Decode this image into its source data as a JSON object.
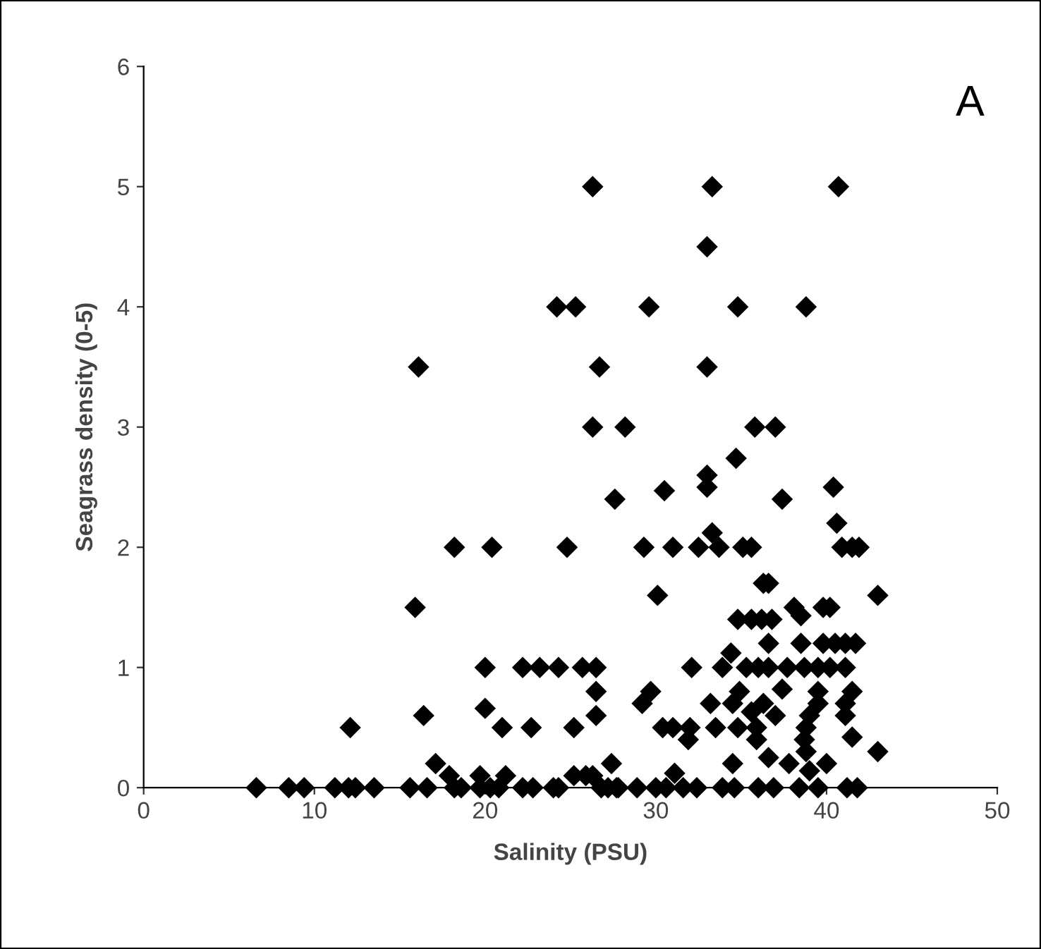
{
  "chart_data": {
    "type": "scatter",
    "xlabel": "Salinity (PSU)",
    "ylabel": "Seagrass density (0-5)",
    "annotations": [
      "A"
    ],
    "xlim": [
      0,
      50
    ],
    "ylim": [
      0,
      6
    ],
    "xticks": [
      0,
      10,
      20,
      30,
      40,
      50
    ],
    "yticks": [
      0,
      1,
      2,
      3,
      4,
      5,
      6
    ],
    "grid": false,
    "marker": "diamond",
    "series": [
      {
        "color": "#000000",
        "x": [
          26.3,
          24.2,
          25.3,
          16.1,
          26.7,
          26.3,
          27.6,
          18.2,
          20.4,
          24.8,
          15.9,
          20.0,
          22.2,
          23.2,
          24.3,
          25.7,
          26.5,
          26.5,
          20.0,
          16.4,
          26.5,
          12.1,
          21.0,
          22.7,
          25.2,
          17.1,
          27.4,
          17.9,
          19.7,
          21.2,
          25.2,
          25.9,
          6.6,
          8.5,
          9.4,
          11.2,
          12.0,
          12.4,
          13.5,
          15.6,
          16.6,
          18.2,
          18.6,
          19.7,
          20.3,
          20.8,
          22.2,
          22.8,
          24.0,
          24.3,
          26.8,
          27.2,
          27.7,
          33.3,
          40.7,
          33.0,
          29.6,
          34.8,
          38.8,
          33.0,
          28.2,
          35.8,
          37.0,
          34.7,
          33.0,
          33.0,
          30.5,
          37.4,
          40.4,
          40.6,
          29.3,
          31.0,
          32.5,
          33.3,
          33.7,
          35.1,
          35.6,
          40.9,
          41.5,
          41.9,
          36.3,
          36.6,
          30.1,
          43.0,
          38.1,
          38.5,
          39.8,
          40.2,
          34.8,
          35.6,
          36.2,
          36.8,
          36.6,
          38.5,
          39.8,
          40.5,
          41.1,
          41.7,
          34.4,
          32.1,
          33.9,
          35.3,
          36.0,
          36.6,
          37.7,
          38.7,
          39.5,
          40.2,
          41.1,
          29.7,
          29.2,
          34.9,
          37.4,
          39.5,
          41.5,
          33.2,
          34.5,
          36.3,
          39.5,
          41.1,
          35.6,
          37.0,
          39.0,
          41.1,
          30.4,
          31.0,
          32.0,
          33.5,
          34.8,
          35.9,
          38.8,
          31.9,
          35.9,
          38.7,
          41.5,
          38.8,
          43.0,
          34.5,
          36.6,
          37.8,
          40.0,
          26.3,
          31.1,
          39.0,
          27.8,
          28.9,
          30.0,
          30.6,
          31.6,
          32.4,
          33.9,
          34.6,
          36.0,
          36.9,
          38.4,
          39.5,
          41.2,
          41.8
        ],
        "values": [
          5,
          4,
          4,
          3.5,
          3.5,
          3,
          2.4,
          2,
          2,
          2,
          1.5,
          1,
          1,
          1,
          1,
          1,
          1,
          0.8,
          0.66,
          0.6,
          0.6,
          0.5,
          0.5,
          0.5,
          0.5,
          0.2,
          0.2,
          0.1,
          0.1,
          0.1,
          0.1,
          0.1,
          0,
          0,
          0,
          0,
          0,
          0,
          0,
          0,
          0,
          0,
          0,
          0,
          0,
          0,
          0,
          0,
          0,
          0,
          0,
          0,
          0,
          5,
          5,
          4.5,
          4,
          4,
          4,
          3.5,
          3,
          3,
          3,
          2.74,
          2.6,
          2.5,
          2.47,
          2.4,
          2.5,
          2.2,
          2,
          2,
          2,
          2.12,
          2,
          2,
          2,
          2,
          2,
          2,
          1.7,
          1.7,
          1.6,
          1.6,
          1.5,
          1.43,
          1.5,
          1.5,
          1.4,
          1.4,
          1.4,
          1.4,
          1.2,
          1.2,
          1.2,
          1.2,
          1.2,
          1.2,
          1.12,
          1,
          1,
          1,
          1,
          1,
          1,
          1,
          1,
          1,
          1,
          0.8,
          0.7,
          0.8,
          0.82,
          0.8,
          0.8,
          0.7,
          0.7,
          0.7,
          0.7,
          0.7,
          0.63,
          0.6,
          0.6,
          0.6,
          0.5,
          0.5,
          0.5,
          0.5,
          0.5,
          0.5,
          0.5,
          0.4,
          0.4,
          0.4,
          0.42,
          0.3,
          0.3,
          0.2,
          0.25,
          0.2,
          0.2,
          0.1,
          0.12,
          0.14,
          0,
          0,
          0,
          0,
          0,
          0,
          0,
          0,
          0,
          0,
          0,
          0,
          0,
          0
        ]
      }
    ]
  }
}
